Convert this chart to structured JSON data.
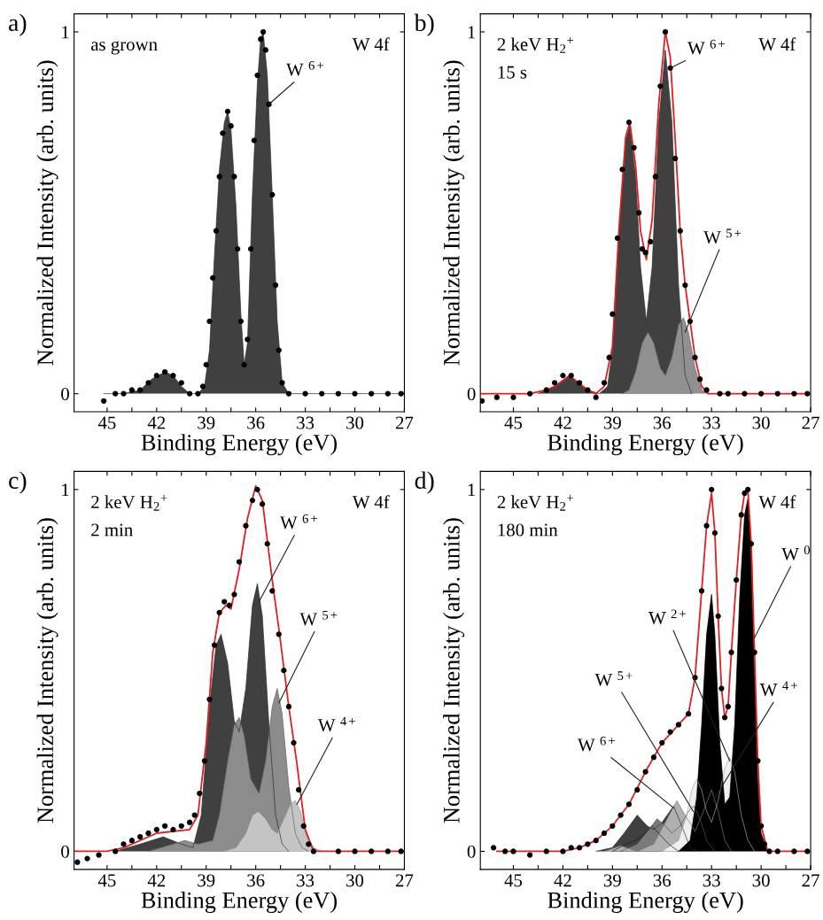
{
  "chart_data": [
    {
      "type": "line",
      "title": "a)",
      "xlabel": "Binding Energy (eV)",
      "ylabel": "Normalized Intensity (arb. units)",
      "xlim": [
        47,
        27
      ],
      "ylim": [
        -0.05,
        1.05
      ],
      "xticks": [
        45,
        {
          "value": 43.5,
          "label": null
        },
        42,
        {
          "value": 40.5,
          "label": null
        },
        39,
        {
          "value": 37.5,
          "label": null
        },
        36,
        {
          "value": 34.5,
          "label": null
        },
        33,
        {
          "value": 31.5,
          "label": null
        },
        30,
        {
          "value": 28.5,
          "label": null
        },
        27
      ],
      "yticks": [
        0,
        1
      ],
      "annotations": [
        "as grown",
        "W 4f",
        {
          "text": "W $^{6+}$",
          "x": 35.2,
          "y": 0.8
        }
      ],
      "series": [
        {
          "type": "area",
          "color": "#404040",
          "x": [
            45.2,
            44,
            43,
            42.3,
            41.5,
            41,
            40.5,
            40,
            39.5,
            39.1,
            38.8,
            38.5,
            38.2,
            37.9,
            37.7,
            37.5,
            37.2,
            36.9,
            36.7,
            36.5,
            36.2,
            35.9,
            35.7,
            35.55,
            35.3,
            35.0,
            34.7,
            34.4,
            34.0,
            33,
            27.2
          ],
          "values": [
            0,
            0,
            0.01,
            0.04,
            0.06,
            0.05,
            0.02,
            0.0,
            0.0,
            0.02,
            0.12,
            0.38,
            0.62,
            0.75,
            0.78,
            0.73,
            0.52,
            0.22,
            0.08,
            0.14,
            0.55,
            0.86,
            0.98,
            1.0,
            0.88,
            0.55,
            0.2,
            0.03,
            0.0,
            0.0,
            0.0
          ]
        },
        {
          "type": "scatter",
          "marker": "circle",
          "color": "#000000",
          "x": [
            45.2,
            44.5,
            44,
            43.5,
            43,
            42.5,
            42,
            41.5,
            41,
            40.5,
            40,
            39.5,
            39.2,
            39.0,
            38.8,
            38.6,
            38.4,
            38.2,
            38.0,
            37.7,
            37.5,
            37.3,
            37.1,
            36.9,
            36.7,
            36.5,
            36.3,
            36.1,
            35.9,
            35.7,
            35.55,
            35.4,
            35.2,
            35.0,
            34.8,
            34.6,
            34.4,
            34,
            33,
            32,
            31,
            30,
            29,
            28,
            27.2
          ],
          "values": [
            -0.02,
            0.0,
            0.0,
            0.01,
            0.01,
            0.03,
            0.05,
            0.06,
            0.05,
            0.03,
            0.0,
            0.0,
            0.02,
            0.08,
            0.2,
            0.32,
            0.45,
            0.6,
            0.72,
            0.78,
            0.74,
            0.6,
            0.4,
            0.2,
            0.08,
            0.15,
            0.4,
            0.7,
            0.88,
            0.98,
            1.0,
            0.95,
            0.8,
            0.55,
            0.3,
            0.12,
            0.03,
            0.0,
            0.0,
            0.0,
            0.0,
            0.0,
            0.0,
            0.0,
            0.0
          ]
        }
      ]
    },
    {
      "type": "line",
      "title": "b)",
      "xlabel": "Binding Energy (eV)",
      "ylabel": "Normalized Intensity (arb. units)",
      "xlim": [
        47,
        27
      ],
      "ylim": [
        -0.05,
        1.05
      ],
      "xticks": [
        45,
        {
          "value": 43.5,
          "label": null
        },
        42,
        {
          "value": 40.5,
          "label": null
        },
        39,
        {
          "value": 37.5,
          "label": null
        },
        36,
        {
          "value": 34.5,
          "label": null
        },
        33,
        {
          "value": 31.5,
          "label": null
        },
        30,
        {
          "value": 28.5,
          "label": null
        },
        27
      ],
      "yticks": [
        0,
        1
      ],
      "annotations": [
        "2 keV H$_{2}$$^{+}$",
        "15 s",
        "W 4f",
        {
          "text": "W $^{6+}$",
          "x": 35.5,
          "y": 0.9
        },
        {
          "text": "W $^{5+}$",
          "x": 34.6,
          "y": 0.17
        }
      ],
      "series": [
        {
          "type": "area",
          "color": "#404040",
          "x": [
            43.5,
            42.5,
            41.6,
            40.5,
            39.8,
            39.3,
            39.0,
            38.6,
            38.2,
            37.95,
            37.6,
            37.3,
            36.95,
            36.6,
            36.2,
            35.8,
            35.4,
            35.0,
            34.6,
            34.2
          ],
          "values": [
            0,
            0.02,
            0.05,
            0.01,
            0,
            0.02,
            0.12,
            0.45,
            0.7,
            0.74,
            0.6,
            0.35,
            0.2,
            0.35,
            0.75,
            0.95,
            0.75,
            0.3,
            0.05,
            0.0
          ]
        },
        {
          "type": "area",
          "color": "#909090",
          "x": [
            38.4,
            38.0,
            37.6,
            37.2,
            36.85,
            36.5,
            36.1,
            35.8,
            35.4,
            35.0,
            34.7,
            34.4,
            34.0,
            33.6,
            33.2
          ],
          "values": [
            0,
            0.01,
            0.06,
            0.14,
            0.17,
            0.14,
            0.07,
            0.05,
            0.1,
            0.19,
            0.21,
            0.17,
            0.07,
            0.01,
            0
          ]
        },
        {
          "type": "line",
          "color": "#e02020",
          "x": [
            47,
            44,
            43,
            42.5,
            41.6,
            40.5,
            40,
            39.5,
            39.0,
            38.6,
            38.2,
            37.95,
            37.6,
            37.3,
            36.95,
            36.6,
            36.2,
            35.8,
            35.5,
            35.2,
            34.9,
            34.6,
            34.3,
            34.0,
            33.6,
            33.2,
            32.5,
            27
          ],
          "values": [
            0,
            0,
            0.01,
            0.02,
            0.05,
            0.01,
            0,
            0.02,
            0.13,
            0.46,
            0.71,
            0.75,
            0.63,
            0.45,
            0.37,
            0.48,
            0.8,
            1.0,
            0.93,
            0.7,
            0.45,
            0.3,
            0.2,
            0.1,
            0.02,
            0.0,
            0,
            0
          ]
        },
        {
          "type": "scatter",
          "marker": "circle",
          "color": "#000000",
          "x": [
            46.9,
            46,
            45,
            44,
            43,
            42.5,
            42,
            41.5,
            41,
            40.5,
            40,
            39.5,
            39.2,
            39.0,
            38.7,
            38.4,
            38.0,
            37.7,
            37.4,
            37.2,
            37.0,
            36.7,
            36.4,
            36.1,
            35.8,
            35.5,
            35.2,
            34.9,
            34.6,
            34.3,
            34.0,
            33.7,
            33.3,
            32.5,
            32,
            31,
            30,
            29,
            28,
            27.2
          ],
          "values": [
            -0.02,
            -0.01,
            -0.01,
            0.0,
            0.01,
            0.03,
            0.05,
            0.05,
            0.03,
            0.01,
            -0.01,
            0.03,
            0.1,
            0.22,
            0.43,
            0.62,
            0.75,
            0.68,
            0.5,
            0.4,
            0.39,
            0.42,
            0.6,
            0.85,
            1.0,
            0.9,
            0.65,
            0.45,
            0.3,
            0.2,
            0.1,
            0.04,
            0.01,
            0.0,
            0.0,
            0.0,
            0.0,
            0.0,
            0.0,
            0.0
          ]
        }
      ]
    },
    {
      "type": "line",
      "title": "c)",
      "xlabel": "Binding Energy (eV)",
      "ylabel": "Normalized Intensity (arb. units)",
      "xlim": [
        47,
        27
      ],
      "ylim": [
        -0.05,
        1.05
      ],
      "xticks": [
        45,
        {
          "value": 43.5,
          "label": null
        },
        42,
        {
          "value": 40.5,
          "label": null
        },
        39,
        {
          "value": 37.5,
          "label": null
        },
        36,
        {
          "value": 34.5,
          "label": null
        },
        33,
        {
          "value": 31.5,
          "label": null
        },
        30,
        {
          "value": 28.5,
          "label": null
        },
        27
      ],
      "yticks": [
        0,
        1
      ],
      "annotations": [
        "2 keV H$_{2}$$^{+}$",
        "2 min",
        "W 4f",
        {
          "text": "W $^{6+}$",
          "x": 35.8,
          "y": 0.69
        },
        {
          "text": "W $^{5+}$",
          "x": 34.6,
          "y": 0.41
        },
        {
          "text": "W $^{4+}$",
          "x": 33.5,
          "y": 0.13
        }
      ],
      "series": [
        {
          "type": "area",
          "color": "#404040",
          "x": [
            44.5,
            43,
            41.6,
            40.5,
            39.8,
            39.3,
            38.8,
            38.4,
            38.1,
            37.7,
            37.3,
            37.0,
            36.6,
            36.2,
            35.9,
            35.6,
            35.2,
            34.8,
            34.4,
            34.0
          ],
          "values": [
            0,
            0.02,
            0.04,
            0.02,
            0.01,
            0.1,
            0.4,
            0.57,
            0.6,
            0.52,
            0.36,
            0.33,
            0.45,
            0.68,
            0.74,
            0.65,
            0.35,
            0.1,
            0.02,
            0
          ]
        },
        {
          "type": "area",
          "color": "#8c8c8c",
          "x": [
            42.5,
            41,
            40.3,
            39.5,
            38.6,
            38.2,
            37.7,
            37.3,
            37.0,
            36.7,
            36.3,
            35.8,
            35.4,
            35.0,
            34.7,
            34.4,
            34.0,
            33.6,
            33.2,
            32.8
          ],
          "values": [
            0,
            0.02,
            0.03,
            0.02,
            0.03,
            0.1,
            0.25,
            0.35,
            0.37,
            0.32,
            0.2,
            0.16,
            0.25,
            0.4,
            0.45,
            0.38,
            0.18,
            0.05,
            0.01,
            0
          ]
        },
        {
          "type": "area",
          "color": "#c4c4c4",
          "x": [
            38,
            37.2,
            36.6,
            36.2,
            35.85,
            35.4,
            35.0,
            34.7,
            34.3,
            33.9,
            33.6,
            33.3,
            32.9,
            32.5,
            32
          ],
          "values": [
            0,
            0.01,
            0.05,
            0.1,
            0.11,
            0.09,
            0.06,
            0.05,
            0.09,
            0.13,
            0.14,
            0.11,
            0.04,
            0.01,
            0
          ]
        },
        {
          "type": "line",
          "color": "#e02020",
          "x": [
            47,
            45,
            44,
            42,
            40,
            39.5,
            39,
            38.6,
            38.2,
            37.8,
            37.5,
            37.0,
            36.5,
            36.0,
            35.6,
            35.0,
            34.5,
            34.0,
            33.5,
            33.0,
            32.5,
            27
          ],
          "values": [
            0,
            0,
            0.01,
            0.05,
            0.06,
            0.1,
            0.3,
            0.55,
            0.66,
            0.68,
            0.67,
            0.78,
            0.92,
            1.01,
            0.97,
            0.75,
            0.58,
            0.4,
            0.24,
            0.06,
            0.0,
            0
          ]
        },
        {
          "type": "scatter",
          "marker": "circle",
          "color": "#000000",
          "x": [
            46.8,
            46.2,
            45.5,
            44.5,
            44,
            43.5,
            43,
            42.5,
            42,
            41.5,
            41,
            40.5,
            40,
            39.7,
            39.4,
            39.1,
            38.8,
            38.5,
            38.2,
            37.9,
            37.6,
            37.3,
            37.0,
            36.6,
            36.2,
            35.9,
            35.6,
            35.3,
            35.0,
            34.6,
            34.3,
            34.0,
            33.7,
            33.4,
            33.1,
            32.8,
            32.5,
            31,
            30,
            29,
            28,
            27.2
          ],
          "values": [
            -0.03,
            -0.02,
            -0.01,
            0.0,
            0.02,
            0.03,
            0.04,
            0.05,
            0.06,
            0.07,
            0.06,
            0.07,
            0.08,
            0.1,
            0.16,
            0.25,
            0.42,
            0.57,
            0.66,
            0.69,
            0.68,
            0.71,
            0.8,
            0.9,
            0.97,
            1.0,
            0.96,
            0.85,
            0.72,
            0.6,
            0.5,
            0.4,
            0.3,
            0.17,
            0.07,
            0.02,
            0.0,
            0.0,
            0.0,
            0.0,
            0.0,
            0.0
          ]
        }
      ]
    },
    {
      "type": "line",
      "title": "d)",
      "xlabel": "Binding Energy (eV)",
      "ylabel": "Normalized Intensity (arb. units)",
      "xlim": [
        47,
        27
      ],
      "ylim": [
        -0.05,
        1.05
      ],
      "xticks": [
        45,
        {
          "value": 43.5,
          "label": null
        },
        42,
        {
          "value": 40.5,
          "label": null
        },
        39,
        {
          "value": 37.5,
          "label": null
        },
        36,
        {
          "value": 34.5,
          "label": null
        },
        33,
        {
          "value": 31.5,
          "label": null
        },
        30,
        {
          "value": 28.5,
          "label": null
        },
        27
      ],
      "yticks": [
        0,
        1
      ],
      "annotations": [
        "2 keV H$_{2}$$^{+}$",
        "180 min",
        "W 4f",
        {
          "text": "W $^{6+}$",
          "x": 35.3,
          "y": 0.12
        },
        {
          "text": "W $^{5+}$",
          "x": 34.1,
          "y": 0.11
        },
        {
          "text": "W $^{2+}$",
          "x": 31.9,
          "y": 0.25
        },
        {
          "text": "W $^{4+}$",
          "x": 32.9,
          "y": 0.14
        },
        {
          "text": "W $^{0}$",
          "x": 30.4,
          "y": 0.59
        }
      ],
      "series": [
        {
          "type": "area",
          "color": "#202020",
          "x": [
            39,
            38.2,
            37.6,
            37.0,
            36.6,
            36.2,
            35.6,
            35
          ],
          "values": [
            0,
            0.02,
            0.03,
            0.05,
            0.07,
            0.05,
            0.02,
            0
          ]
        },
        {
          "type": "area",
          "color": "#404040",
          "x": [
            40,
            39,
            38.3,
            37.5,
            36.9,
            36.5,
            36.0,
            35.3,
            34.8,
            34.3,
            33.8
          ],
          "values": [
            0,
            0.01,
            0.05,
            0.1,
            0.07,
            0.06,
            0.08,
            0.125,
            0.07,
            0.01,
            0
          ]
        },
        {
          "type": "area",
          "color": "#7a7a7a",
          "x": [
            38.5,
            37.5,
            36.8,
            36.3,
            35.8,
            35.4,
            34.9,
            34.4,
            34.1,
            33.7,
            33.3,
            32.8
          ],
          "values": [
            0,
            0.02,
            0.06,
            0.09,
            0.07,
            0.05,
            0.07,
            0.11,
            0.125,
            0.09,
            0.03,
            0
          ]
        },
        {
          "type": "area",
          "color": "#b0b0b0",
          "x": [
            39.5,
            38.5,
            37.5,
            36.5,
            35.8,
            35.1,
            34.6,
            34.0,
            33.5,
            33.0,
            32.6,
            32.2,
            31.8
          ],
          "values": [
            0,
            0.015,
            0,
            0.02,
            0.08,
            0.14,
            0.1,
            0.055,
            0.11,
            0.17,
            0.11,
            0.03,
            0
          ]
        },
        {
          "type": "area",
          "color": "#efefef",
          "x": [
            36,
            35,
            34.5,
            34.2,
            33.9,
            33.6,
            33.3,
            33.0,
            32.6,
            32.2,
            31.9,
            31.6,
            31.2,
            30.8,
            30.4
          ],
          "values": [
            0,
            0.03,
            0.1,
            0.17,
            0.2,
            0.17,
            0.11,
            0.08,
            0.14,
            0.23,
            0.26,
            0.22,
            0.1,
            0.03,
            0
          ]
        },
        {
          "type": "area",
          "color": "#000000",
          "x": [
            35,
            34.3,
            33.9,
            33.6,
            33.3,
            33.0,
            32.8,
            32.5,
            32.2,
            31.9,
            31.6,
            31.3,
            31.0,
            30.8,
            30.6,
            30.4,
            30.2,
            30.0,
            29.6
          ],
          "values": [
            0,
            0.03,
            0.15,
            0.35,
            0.6,
            0.71,
            0.6,
            0.3,
            0.13,
            0.15,
            0.35,
            0.7,
            0.93,
            0.975,
            0.85,
            0.5,
            0.2,
            0.05,
            0
          ]
        },
        {
          "type": "line",
          "color": "#e02020",
          "x": [
            46,
            42,
            41,
            40,
            39,
            38,
            37,
            36,
            35,
            34.4,
            34.0,
            33.6,
            33.3,
            33.0,
            32.8,
            32.6,
            32.4,
            32.2,
            32.0,
            31.8,
            31.5,
            31.2,
            31.0,
            30.8,
            30.6,
            30.4,
            30.2,
            30.0,
            29.6,
            27
          ],
          "values": [
            0,
            0,
            0.01,
            0.03,
            0.07,
            0.13,
            0.22,
            0.3,
            0.35,
            0.38,
            0.48,
            0.72,
            0.9,
            0.99,
            0.88,
            0.65,
            0.45,
            0.37,
            0.4,
            0.55,
            0.75,
            0.93,
            0.99,
            1.0,
            0.85,
            0.55,
            0.25,
            0.07,
            0.0,
            0
          ]
        },
        {
          "type": "scatter",
          "marker": "circle",
          "color": "#000000",
          "x": [
            46.2,
            45.5,
            45,
            44,
            43,
            42,
            41.5,
            41,
            40.5,
            40,
            39.5,
            39,
            38.5,
            38,
            37.5,
            37,
            36.5,
            36,
            35.5,
            35,
            34.4,
            34.0,
            33.6,
            33.3,
            33.0,
            32.8,
            32.6,
            32.4,
            32.2,
            32.0,
            31.8,
            31.5,
            31.2,
            31.0,
            30.8,
            30.6,
            30.4,
            30.2,
            30.0,
            29.8,
            29.5,
            29,
            28,
            27.2
          ],
          "values": [
            0.01,
            0.0,
            0.0,
            -0.01,
            0.0,
            0.0,
            0.01,
            0.01,
            0.02,
            0.03,
            0.05,
            0.07,
            0.1,
            0.13,
            0.17,
            0.22,
            0.26,
            0.3,
            0.33,
            0.35,
            0.38,
            0.48,
            0.72,
            0.9,
            1.0,
            0.88,
            0.65,
            0.45,
            0.37,
            0.4,
            0.55,
            0.75,
            0.93,
            0.99,
            1.0,
            0.85,
            0.55,
            0.25,
            0.07,
            0.02,
            0.0,
            0.0,
            0.0,
            0.0
          ]
        }
      ]
    }
  ]
}
